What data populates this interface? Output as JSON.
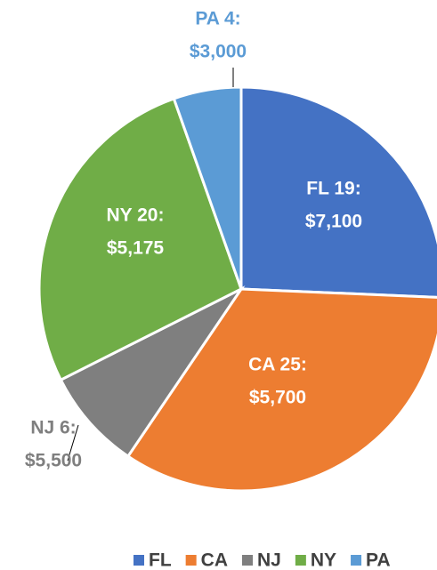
{
  "chart_data": {
    "type": "pie",
    "categories": [
      "FL",
      "CA",
      "NJ",
      "NY",
      "PA"
    ],
    "values": [
      19,
      25,
      6,
      20,
      4
    ],
    "value_labels": [
      "FL 19:",
      "CA 25:",
      "NJ 6:",
      "NY 20:",
      "PA 4:"
    ],
    "amount_labels": [
      "$7,100",
      "$5,700",
      "$5,500",
      "$5,175",
      "$3,000"
    ],
    "colors": [
      "#4472c4",
      "#ed7d31",
      "#7f7f7f",
      "#70ad47",
      "#5b9bd5"
    ],
    "legend": "bottom"
  }
}
